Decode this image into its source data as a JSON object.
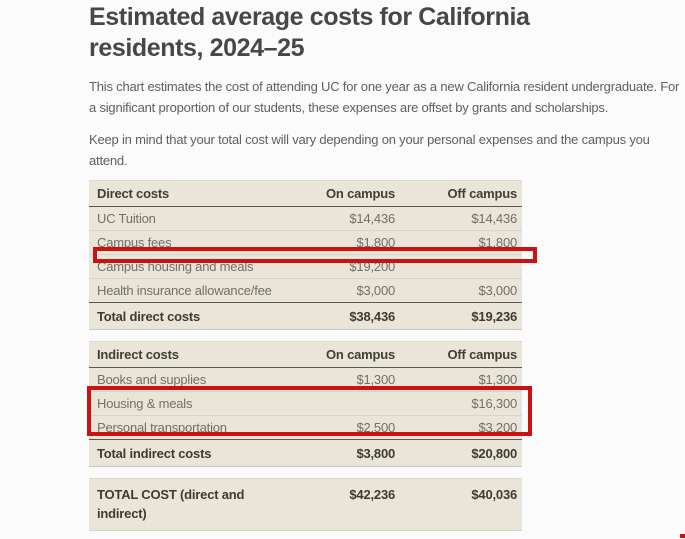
{
  "page": {
    "title": "Estimated average costs for California residents, 2024–25",
    "intro": "This chart estimates the cost of attending UC for one year as a new California resident undergraduate. For a significant proportion of our students, these expenses are offset by grants and scholarships.",
    "note": "Keep in mind that your total cost will vary depending on your personal expenses and the campus you attend."
  },
  "columns": {
    "on_campus": "On campus",
    "off_campus": "Off campus"
  },
  "direct_costs": {
    "section_label": "Direct costs",
    "rows": [
      {
        "label": "UC Tuition",
        "on_campus": "$14,436",
        "off_campus": "$14,436"
      },
      {
        "label": "Campus fees",
        "on_campus": "$1,800",
        "off_campus": "$1,800"
      },
      {
        "label": "Campus housing and meals",
        "on_campus": "$19,200",
        "off_campus": ""
      },
      {
        "label": "Health insurance allowance/fee",
        "on_campus": "$3,000",
        "off_campus": "$3,000"
      }
    ],
    "total": {
      "label": "Total direct costs",
      "on_campus": "$38,436",
      "off_campus": "$19,236"
    }
  },
  "indirect_costs": {
    "section_label": "Indirect costs",
    "rows": [
      {
        "label": "Books and supplies",
        "on_campus": "$1,300",
        "off_campus": "$1,300"
      },
      {
        "label": "Housing & meals",
        "on_campus": "",
        "off_campus": "$16,300"
      },
      {
        "label": "Personal transportation",
        "on_campus": "$2,500",
        "off_campus": "$3,200"
      }
    ],
    "total": {
      "label": "Total indirect costs",
      "on_campus": "$3,800",
      "off_campus": "$20,800"
    }
  },
  "grand_total": {
    "label": "TOTAL COST (direct and indirect)",
    "on_campus": "$42,236",
    "off_campus": "$40,036"
  },
  "annotations": {
    "highlight_color": "#cc1111",
    "highlighted_direct_row": "Campus housing and meals",
    "highlighted_indirect_rows": [
      "Housing & meals",
      "Personal transportation"
    ]
  },
  "colors": {
    "table_background": "#e9e6d9",
    "page_background": "#fbfbfb",
    "heading_text": "#474747",
    "table_dark_text": "#3d3b32",
    "table_row_text": "#716f66"
  }
}
